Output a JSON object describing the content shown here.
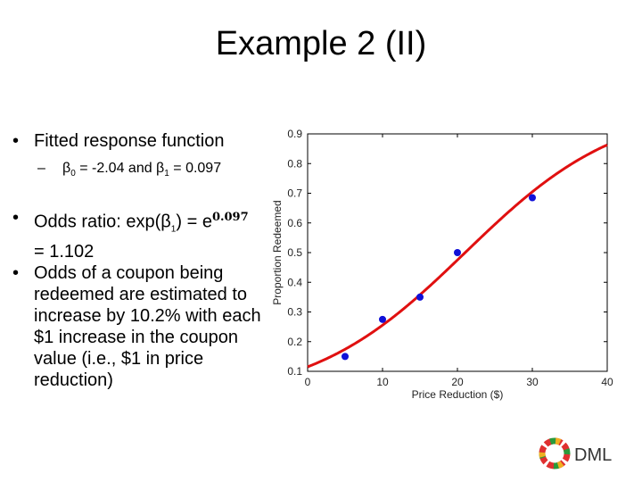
{
  "slide": {
    "title": "Example 2 (II)",
    "bullet1": "Fitted response function",
    "sub_pre": "β",
    "sub_i0": "0",
    "sub_mid": " = -2.04 and β",
    "sub_i1": "1",
    "sub_post": " = 0.097",
    "bullet2_pre": "Odds ratio: exp(β",
    "bullet2_i1": "1",
    "bullet2_mid": ") = e",
    "bullet2_exp": "0.097",
    "bullet2_post": " = 1.102",
    "bullet3": "Odds of a coupon being redeemed are estimated to increase by 10.2% with each $1 increase in the coupon value (i.e., $1 in price reduction)",
    "bullet_symbol": "•",
    "dash_symbol": "–"
  },
  "logo": {
    "text": "DML"
  },
  "colors": {
    "curve": "#e01010",
    "points": "#1010d8"
  },
  "chart_data": {
    "type": "scatter",
    "xlabel": "Price Reduction ($)",
    "ylabel": "Proportion Redeemed",
    "xlim": [
      0,
      40
    ],
    "ylim": [
      0.1,
      0.9
    ],
    "xticks": [
      "0",
      "10",
      "20",
      "30",
      "40"
    ],
    "yticks": [
      "0.1",
      "0.2",
      "0.3",
      "0.4",
      "0.5",
      "0.6",
      "0.7",
      "0.8",
      "0.9"
    ],
    "grid": false,
    "points": {
      "x": [
        5,
        10,
        15,
        20,
        30
      ],
      "y": [
        0.15,
        0.275,
        0.35,
        0.5,
        0.685
      ]
    },
    "fitted": {
      "b0": -2.04,
      "b1": 0.097
    }
  }
}
